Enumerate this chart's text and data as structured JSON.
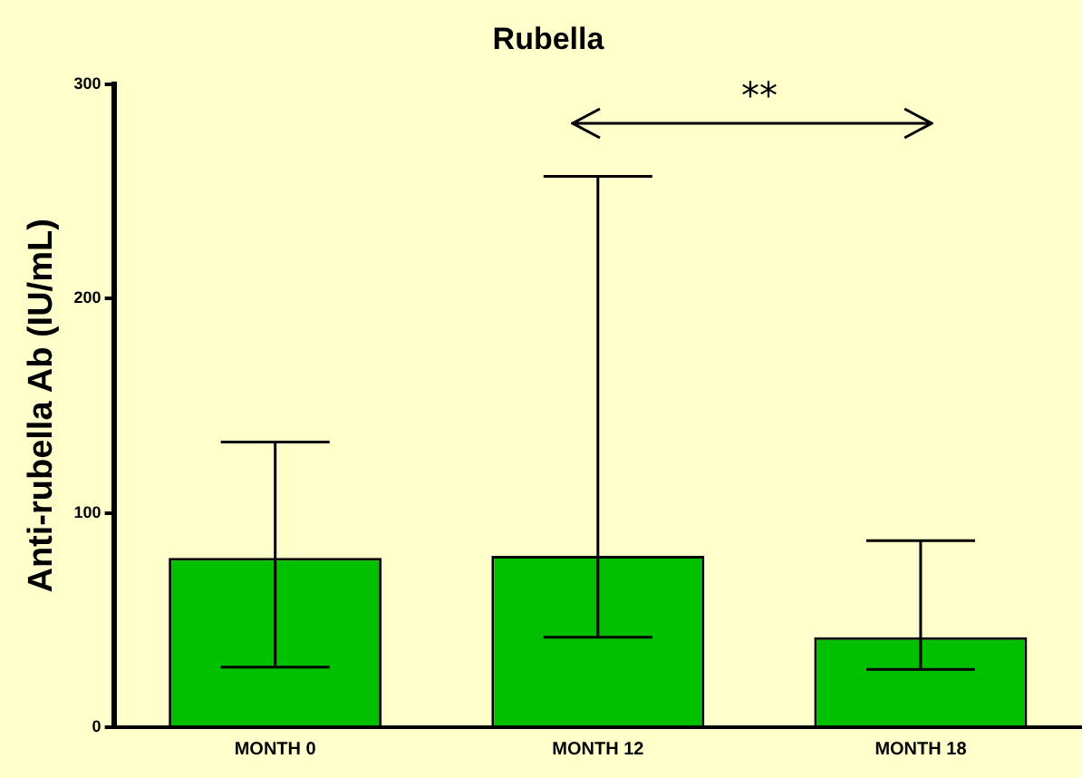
{
  "chart_data": {
    "type": "bar",
    "title": "Rubella",
    "ylabel": "Anti-rubella Ab (IU/mL)",
    "categories": [
      "MONTH 0",
      "MONTH 12",
      "MONTH 18"
    ],
    "values": [
      79,
      80,
      42
    ],
    "errors": [
      [
        28,
        133
      ],
      [
        42,
        257
      ],
      [
        27,
        87
      ]
    ],
    "color": "#00c000",
    "ylim": [
      0,
      300
    ],
    "yticks": [
      0,
      100,
      200,
      300
    ],
    "grid": false,
    "legend": false,
    "annotations": [
      "**"
    ]
  }
}
